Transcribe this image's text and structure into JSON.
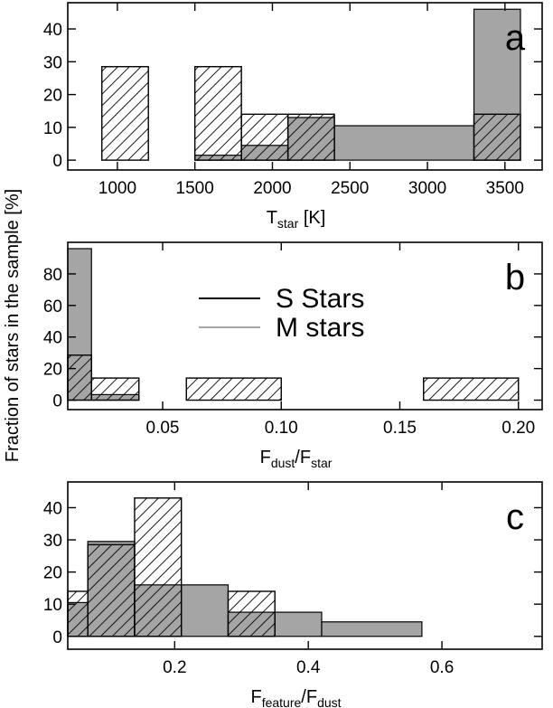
{
  "colors": {
    "m_stars_fill": "#a5a5a5",
    "frame": "#000000",
    "background": "#ffffff"
  },
  "y_axis_label": "Fraction of stars in the sample [%]",
  "legend": [
    {
      "label": "S Stars",
      "line_color": "#000000"
    },
    {
      "label": "M stars",
      "line_color": "#a5a5a5"
    }
  ],
  "chart_data": [
    {
      "type": "bar",
      "panel": "a",
      "xlabel_main": "T",
      "xlabel_sub": "star",
      "xlabel_tail": " [K]",
      "xlim": [
        680,
        3740
      ],
      "ylim": [
        -3,
        48
      ],
      "xticks": [
        1000,
        1500,
        2000,
        2500,
        3000,
        3500
      ],
      "yticks": [
        0,
        10,
        20,
        30,
        40
      ],
      "legend": false,
      "series": [
        {
          "name": "M stars",
          "style": "solid-gray",
          "bins": [
            [
              1500,
              1800,
              1.5
            ],
            [
              1800,
              2100,
              4.5
            ],
            [
              2100,
              2400,
              13
            ],
            [
              2400,
              3300,
              10.5
            ],
            [
              3300,
              3600,
              46
            ]
          ]
        },
        {
          "name": "S Stars",
          "style": "hatched",
          "bins": [
            [
              900,
              1200,
              28.5
            ],
            [
              1500,
              1800,
              28.5
            ],
            [
              1800,
              2100,
              14
            ],
            [
              2100,
              2400,
              14
            ],
            [
              3300,
              3600,
              14
            ]
          ]
        }
      ]
    },
    {
      "type": "bar",
      "panel": "b",
      "xlabel_main": "F",
      "xlabel_sub": "dust",
      "xlabel_mid": "/F",
      "xlabel_sub2": "star",
      "xlim": [
        0.01,
        0.21
      ],
      "ylim": [
        -6,
        100
      ],
      "xticks": [
        0.05,
        0.1,
        0.15,
        0.2
      ],
      "xtick_labels": [
        "0.05",
        "0.10",
        "0.15",
        "0.20"
      ],
      "yticks": [
        0,
        20,
        40,
        60,
        80
      ],
      "legend": true,
      "series": [
        {
          "name": "M stars",
          "style": "solid-gray",
          "bins": [
            [
              0.01,
              0.02,
              96
            ],
            [
              0.02,
              0.04,
              3.5
            ]
          ]
        },
        {
          "name": "S Stars",
          "style": "hatched",
          "bins": [
            [
              0.01,
              0.02,
              28.5
            ],
            [
              0.02,
              0.04,
              14
            ],
            [
              0.06,
              0.1,
              14
            ],
            [
              0.16,
              0.2,
              14
            ]
          ]
        }
      ]
    },
    {
      "type": "bar",
      "panel": "c",
      "xlabel_main": "F",
      "xlabel_sub": "feature",
      "xlabel_mid": "/F",
      "xlabel_sub2": "dust",
      "xlim": [
        0.04,
        0.75
      ],
      "ylim": [
        -4,
        48
      ],
      "xticks": [
        0.2,
        0.4,
        0.6
      ],
      "yticks": [
        0,
        10,
        20,
        30,
        40
      ],
      "legend": false,
      "series": [
        {
          "name": "M stars",
          "style": "solid-gray",
          "bins": [
            [
              0.04,
              0.07,
              10.5
            ],
            [
              0.07,
              0.14,
              29.5
            ],
            [
              0.14,
              0.21,
              16
            ],
            [
              0.21,
              0.28,
              16
            ],
            [
              0.28,
              0.35,
              7.5
            ],
            [
              0.35,
              0.42,
              7.5
            ],
            [
              0.42,
              0.57,
              4.5
            ]
          ]
        },
        {
          "name": "S Stars",
          "style": "hatched",
          "bins": [
            [
              0.04,
              0.07,
              14
            ],
            [
              0.07,
              0.14,
              28.5
            ],
            [
              0.14,
              0.21,
              43
            ],
            [
              0.28,
              0.35,
              14
            ]
          ]
        }
      ]
    }
  ]
}
